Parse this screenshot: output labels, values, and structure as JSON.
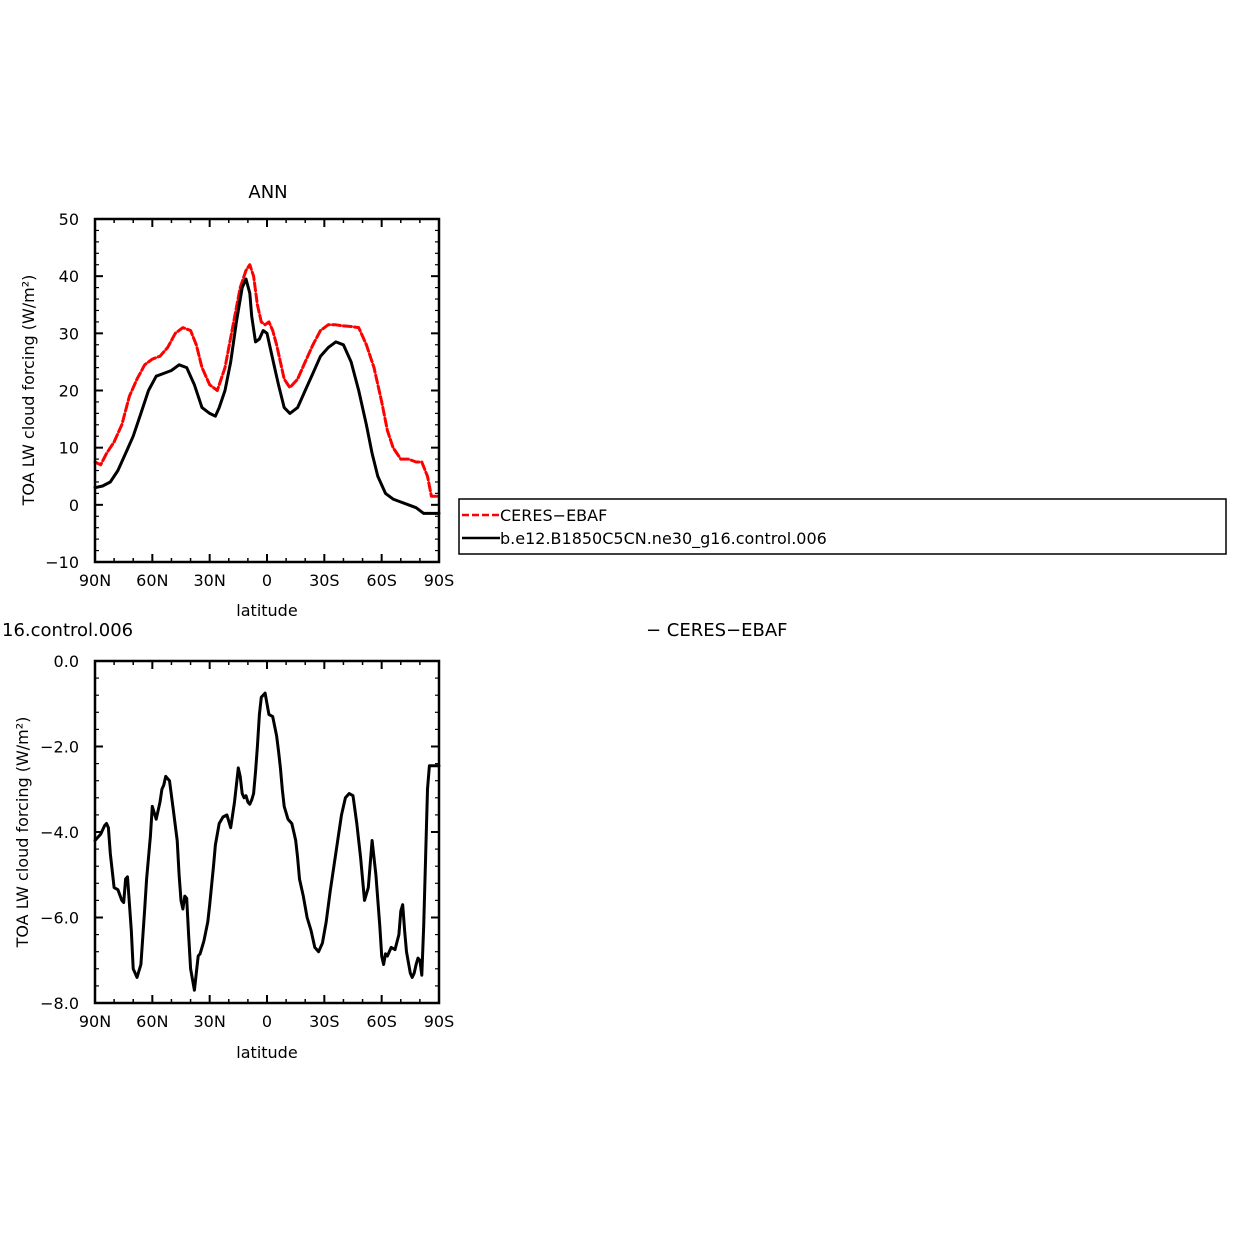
{
  "chart_data": [
    {
      "type": "line",
      "title": "ANN",
      "xlabel": "latitude",
      "ylabel": "TOA LW cloud forcing (W/m²)",
      "xlim": [
        90,
        -90
      ],
      "ylim": [
        -10,
        50
      ],
      "x_tick_values": [
        90,
        60,
        30,
        0,
        -30,
        -60,
        -90
      ],
      "x_tick_labels": [
        "90N",
        "60N",
        "30N",
        "0",
        "30S",
        "60S",
        "90S"
      ],
      "y_tick_values": [
        -10,
        0,
        10,
        20,
        30,
        40,
        50
      ],
      "y_tick_labels": [
        "−10",
        "0",
        "10",
        "20",
        "30",
        "40",
        "50"
      ],
      "legend_position": "right of plot",
      "series": [
        {
          "name": "CERES−EBAF",
          "color": "#ff0000",
          "dash": "dashed",
          "x": [
            90,
            87,
            84,
            80,
            76,
            72,
            68,
            64,
            60,
            56,
            52,
            48,
            44,
            40,
            37,
            34,
            30,
            26,
            22,
            18,
            14,
            11,
            9,
            7,
            5,
            3,
            1,
            -1,
            -3,
            -5,
            -7,
            -9,
            -12,
            -16,
            -20,
            -24,
            -28,
            -32,
            -36,
            -40,
            -44,
            -48,
            -52,
            -56,
            -60,
            -63,
            -66,
            -70,
            -74,
            -78,
            -81,
            -84,
            -86,
            -88,
            -90
          ],
          "y": [
            7.5,
            7,
            9,
            11,
            14,
            19,
            22,
            24.5,
            25.5,
            26,
            27.5,
            30,
            31,
            30.5,
            28,
            24,
            21,
            20,
            24,
            31,
            38,
            41,
            42,
            40,
            35,
            32,
            31.5,
            32,
            30.5,
            28,
            25,
            22,
            20.5,
            22,
            25,
            28,
            30.5,
            31.5,
            31.5,
            31.3,
            31.2,
            31,
            28,
            24,
            18,
            13,
            10,
            8,
            8,
            7.5,
            7.5,
            5,
            1.5,
            1.5,
            1.5
          ]
        },
        {
          "name": "b.e12.B1850C5CN.ne30_g16.control.006",
          "color": "#000000",
          "dash": "solid",
          "x": [
            90,
            86,
            82,
            78,
            74,
            70,
            66,
            62,
            58,
            54,
            50,
            46,
            42,
            38,
            34,
            30,
            27,
            25,
            22,
            19,
            16,
            13,
            11,
            9,
            8,
            6,
            4,
            2,
            0,
            -2,
            -4,
            -6,
            -9,
            -12,
            -16,
            -20,
            -24,
            -28,
            -32,
            -36,
            -40,
            -44,
            -48,
            -52,
            -55,
            -58,
            -62,
            -66,
            -70,
            -74,
            -78,
            -82,
            -85,
            -88,
            -90
          ],
          "y": [
            3,
            3.3,
            4,
            6,
            9,
            12,
            16,
            20,
            22.5,
            23,
            23.5,
            24.5,
            24,
            21,
            17,
            16,
            15.5,
            17,
            20,
            25,
            32,
            38,
            39.5,
            37,
            33,
            28.5,
            29,
            30.5,
            30,
            27,
            24,
            21,
            17,
            16,
            17,
            20,
            23,
            26,
            27.5,
            28.5,
            28,
            25,
            20,
            14,
            9,
            5,
            2,
            1,
            0.5,
            0,
            -0.5,
            -1.5,
            -1.5,
            -1.5,
            -1.5
          ]
        }
      ]
    },
    {
      "type": "line",
      "title": "16.control.006",
      "title_right": "− CERES−EBAF",
      "xlabel": "latitude",
      "ylabel": "TOA LW cloud forcing (W/m²)",
      "xlim": [
        90,
        -90
      ],
      "ylim": [
        -8,
        0
      ],
      "x_tick_values": [
        90,
        60,
        30,
        0,
        -30,
        -60,
        -90
      ],
      "x_tick_labels": [
        "90N",
        "60N",
        "30N",
        "0",
        "30S",
        "60S",
        "90S"
      ],
      "y_tick_values": [
        -8,
        -6,
        -4,
        -2,
        0
      ],
      "y_tick_labels": [
        "−8.0",
        "−6.0",
        "−4.0",
        "−2.0",
        "0.0"
      ],
      "series": [
        {
          "name": "",
          "color": "#000000",
          "dash": "solid",
          "x": [
            90,
            89,
            87,
            85,
            84,
            83,
            82,
            80,
            78,
            76,
            75,
            74,
            73,
            71,
            70,
            68,
            66,
            64,
            63,
            62,
            61,
            60,
            58,
            56,
            55,
            54,
            53,
            51,
            49,
            47,
            46,
            45,
            44,
            43,
            42,
            41,
            40,
            38,
            37,
            36,
            35,
            34,
            33,
            31,
            30,
            28,
            27,
            25,
            23,
            21,
            19,
            17,
            16,
            15,
            14,
            13,
            12,
            11,
            10,
            9,
            8,
            7,
            6,
            5,
            4,
            3,
            1,
            -1,
            -3,
            -5,
            -6,
            -7,
            -8,
            -9,
            -11,
            -13,
            -14,
            -15,
            -16,
            -17,
            -19,
            -21,
            -23,
            -25,
            -27,
            -29,
            -31,
            -33,
            -35,
            -37,
            -39,
            -41,
            -43,
            -45,
            -47,
            -49,
            -51,
            -53,
            -55,
            -57,
            -59,
            -60,
            -61,
            -62,
            -63,
            -65,
            -67,
            -69,
            -70,
            -71,
            -72,
            -73,
            -75,
            -76,
            -77,
            -78,
            -79,
            -80,
            -81,
            -82,
            -83,
            -84,
            -85,
            -86,
            -87,
            -88,
            -89,
            -90
          ],
          "y": [
            -4.2,
            -4.15,
            -4.05,
            -3.85,
            -3.8,
            -3.9,
            -4.5,
            -5.3,
            -5.35,
            -5.6,
            -5.65,
            -5.1,
            -5.05,
            -6.3,
            -7.2,
            -7.4,
            -7.1,
            -5.8,
            -5.1,
            -4.6,
            -4.1,
            -3.4,
            -3.7,
            -3.3,
            -3.0,
            -2.9,
            -2.7,
            -2.8,
            -3.5,
            -4.2,
            -5.0,
            -5.6,
            -5.8,
            -5.5,
            -5.55,
            -6.4,
            -7.2,
            -7.7,
            -7.3,
            -6.9,
            -6.85,
            -6.7,
            -6.55,
            -6.1,
            -5.7,
            -4.8,
            -4.3,
            -3.8,
            -3.65,
            -3.6,
            -3.9,
            -3.3,
            -2.9,
            -2.5,
            -2.7,
            -3.1,
            -3.2,
            -3.15,
            -3.3,
            -3.35,
            -3.25,
            -3.1,
            -2.6,
            -2.0,
            -1.25,
            -0.85,
            -0.75,
            -1.25,
            -1.3,
            -1.75,
            -2.1,
            -2.5,
            -3.0,
            -3.4,
            -3.7,
            -3.8,
            -4.0,
            -4.2,
            -4.6,
            -5.1,
            -5.5,
            -6.0,
            -6.3,
            -6.7,
            -6.8,
            -6.6,
            -6.1,
            -5.4,
            -4.8,
            -4.2,
            -3.6,
            -3.2,
            -3.1,
            -3.15,
            -3.8,
            -4.6,
            -5.6,
            -5.3,
            -4.2,
            -5.0,
            -6.2,
            -6.9,
            -7.1,
            -6.85,
            -6.9,
            -6.7,
            -6.75,
            -6.4,
            -5.85,
            -5.7,
            -6.3,
            -6.8,
            -7.3,
            -7.4,
            -7.3,
            -7.1,
            -6.95,
            -7.0,
            -7.35,
            -6.2,
            -4.6,
            -3.0,
            -2.45,
            -2.45,
            -2.45,
            -2.45,
            -2.45,
            -2.45
          ]
        }
      ]
    }
  ]
}
